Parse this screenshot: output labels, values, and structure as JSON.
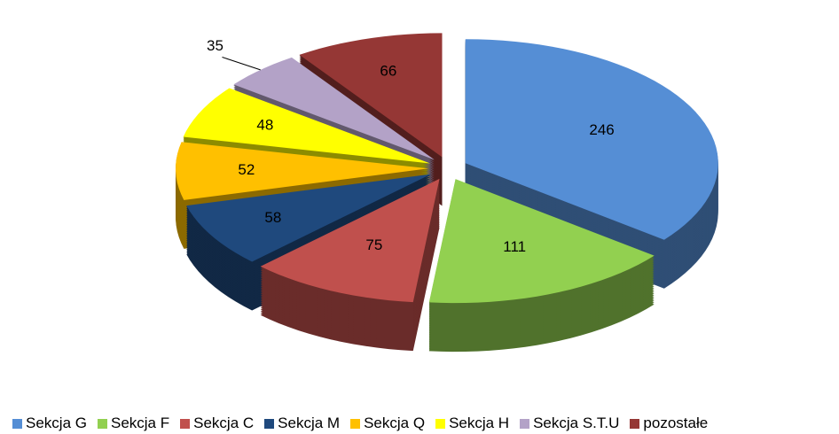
{
  "chart_data": {
    "type": "pie",
    "categories": [
      "Sekcja G",
      "Sekcja F",
      "Sekcja C",
      "Sekcja M",
      "Sekcja Q",
      "Sekcja H",
      "Sekcja S.T.U",
      "pozostałe"
    ],
    "values": [
      246,
      111,
      75,
      58,
      52,
      48,
      35,
      66
    ],
    "colors": [
      "#558ed5",
      "#92d050",
      "#c0504d",
      "#1f497d",
      "#ffc000",
      "#ffff00",
      "#b3a2c7",
      "#953735"
    ],
    "legend": "bottom"
  }
}
